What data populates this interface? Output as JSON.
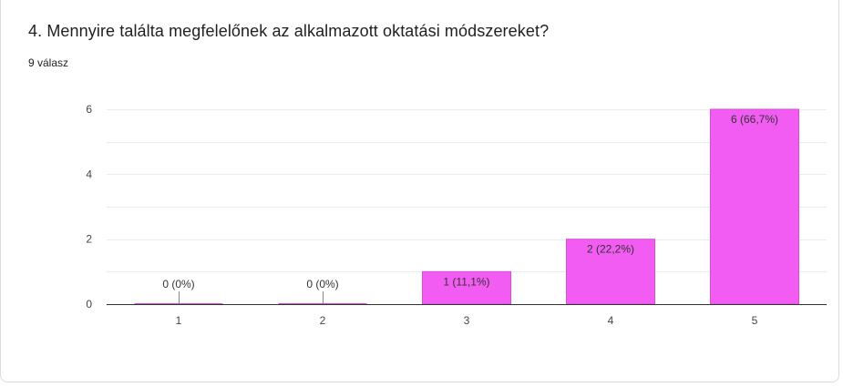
{
  "question": {
    "title": "4. Mennyire találta megfelelőnek az alkalmazott oktatási módszereket?",
    "responses": "9 válasz"
  },
  "chart_data": {
    "type": "bar",
    "categories": [
      "1",
      "2",
      "3",
      "4",
      "5"
    ],
    "values": [
      0,
      0,
      1,
      2,
      6
    ],
    "data_labels": [
      "0 (0%)",
      "0 (0%)",
      "1 (11,1%)",
      "2 (22,2%)",
      "6 (66,7%)"
    ],
    "y_ticks": [
      "0",
      "2",
      "4",
      "6"
    ],
    "ylim": [
      0,
      6
    ],
    "grid": true,
    "bar_color": "#f25cf2",
    "bar_border_color": "#d84ed8"
  }
}
